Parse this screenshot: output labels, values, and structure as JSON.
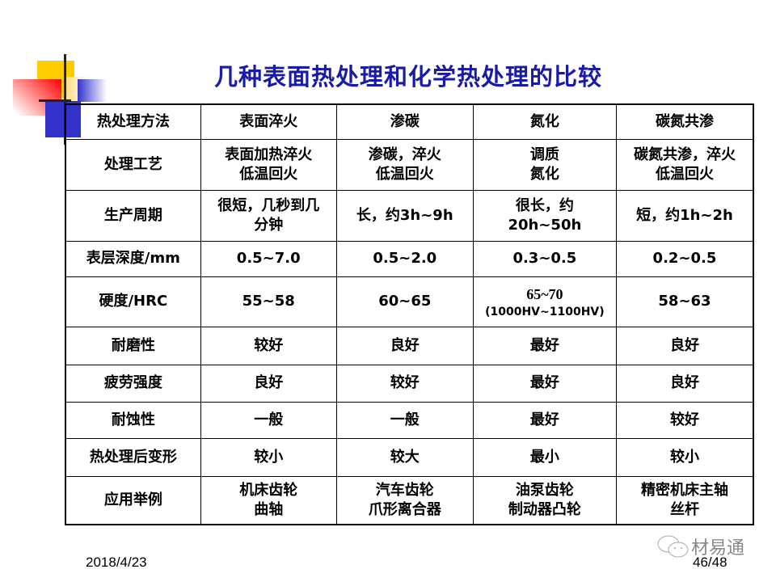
{
  "title": "几种表面热处理和化学热处理的比较",
  "table": {
    "header": [
      "热处理方法",
      "表面淬火",
      "渗碳",
      "氮化",
      "碳氮共渗"
    ],
    "rows": [
      [
        "处理工艺",
        "表面加热淬火\n低温回火",
        "渗碳，淬火\n低温回火",
        "调质\n氮化",
        "碳氮共渗，淬火\n低温回火"
      ],
      [
        "生产周期",
        "很短，几秒到几\n分钟",
        "长，约3h~9h",
        "很长，约\n20h~50h",
        "短，约1h~2h"
      ],
      [
        "表层深度/mm",
        "0.5~7.0",
        "0.5~2.0",
        "0.3~0.5",
        "0.2~0.5"
      ],
      [
        "硬度/HRC",
        "55~58",
        "60~65",
        "65~70\n(1000HV~1100HV)",
        "58~63"
      ],
      [
        "耐磨性",
        "较好",
        "良好",
        "最好",
        "良好"
      ],
      [
        "疲劳强度",
        "良好",
        "较好",
        "最好",
        "良好"
      ],
      [
        "耐蚀性",
        "一般",
        "一般",
        "最好",
        "较好"
      ],
      [
        "热处理后变形",
        "较小",
        "较大",
        "最小",
        "较小"
      ],
      [
        "应用举例",
        "机床齿轮\n曲轴",
        "汽车齿轮\n爪形离合器",
        "油泵齿轮\n制动器凸轮",
        "精密机床主轴\n丝杆"
      ]
    ]
  },
  "footer": {
    "date": "2018/4/23",
    "page": "46/48",
    "watermark": "材易通"
  },
  "colors": {
    "title": "#1a1aa8",
    "yellow": "#ffcc00",
    "red": "#ff0000",
    "blue": "#3333cc"
  }
}
